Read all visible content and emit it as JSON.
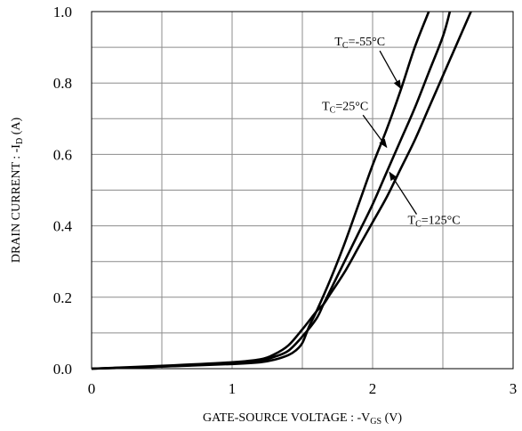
{
  "chart_data": {
    "type": "line",
    "title": "",
    "xlabel": {
      "main": "GATE-SOURCE VOLTAGE : -V",
      "sub": "GS",
      "unit": " (V)"
    },
    "ylabel": {
      "main": "DRAIN CURRENT : -I",
      "sub": "D",
      "unit": " (A)"
    },
    "xlim": [
      0,
      3
    ],
    "ylim": [
      0,
      1.0
    ],
    "grid": true,
    "x_ticks": [
      0,
      1,
      2,
      3
    ],
    "x_tick_labels": [
      "0",
      "1",
      "2",
      "3"
    ],
    "y_ticks": [
      0.0,
      0.2,
      0.4,
      0.6,
      0.8,
      1.0
    ],
    "y_tick_labels": [
      "0.0",
      "0.2",
      "0.4",
      "0.6",
      "0.8",
      "1.0"
    ],
    "series": [
      {
        "label_main": "T",
        "label_sub": "C",
        "label_rest": "=-55°C",
        "x": [
          0,
          0.5,
          1.0,
          1.2,
          1.3,
          1.4,
          1.45,
          1.5,
          1.55,
          1.6,
          1.7,
          1.8,
          1.9,
          2.0,
          2.1,
          2.2,
          2.3,
          2.4
        ],
        "y": [
          0,
          0.006,
          0.013,
          0.018,
          0.025,
          0.038,
          0.05,
          0.072,
          0.12,
          0.16,
          0.25,
          0.35,
          0.46,
          0.57,
          0.67,
          0.78,
          0.9,
          1.0
        ]
      },
      {
        "label_main": "T",
        "label_sub": "C",
        "label_rest": "=25°C",
        "x": [
          0,
          0.5,
          1.0,
          1.2,
          1.3,
          1.4,
          1.5,
          1.6,
          1.65,
          1.7,
          1.8,
          1.9,
          2.0,
          2.1,
          2.2,
          2.3,
          2.4,
          2.5,
          2.55
        ],
        "y": [
          0,
          0.006,
          0.015,
          0.022,
          0.033,
          0.05,
          0.09,
          0.14,
          0.18,
          0.22,
          0.3,
          0.38,
          0.46,
          0.55,
          0.64,
          0.73,
          0.83,
          0.93,
          1.0
        ]
      },
      {
        "label_main": "T",
        "label_sub": "C",
        "label_rest": "=125°C",
        "x": [
          0,
          0.5,
          1.0,
          1.2,
          1.3,
          1.4,
          1.5,
          1.6,
          1.65,
          1.7,
          1.8,
          1.9,
          2.0,
          2.1,
          2.2,
          2.3,
          2.4,
          2.5,
          2.6,
          2.7
        ],
        "y": [
          0,
          0.008,
          0.018,
          0.026,
          0.04,
          0.065,
          0.11,
          0.16,
          0.18,
          0.21,
          0.27,
          0.34,
          0.41,
          0.48,
          0.56,
          0.64,
          0.73,
          0.82,
          0.91,
          1.0
        ]
      }
    ],
    "annotations": [
      {
        "series": 0,
        "text_pos": [
          1.73,
          0.905
        ],
        "arrow_to": [
          2.2,
          0.785
        ]
      },
      {
        "series": 1,
        "text_pos": [
          1.64,
          0.725
        ],
        "arrow_to": [
          2.1,
          0.62
        ]
      },
      {
        "series": 2,
        "text_pos": [
          2.25,
          0.405
        ],
        "arrow_to": [
          2.12,
          0.55
        ]
      }
    ]
  }
}
